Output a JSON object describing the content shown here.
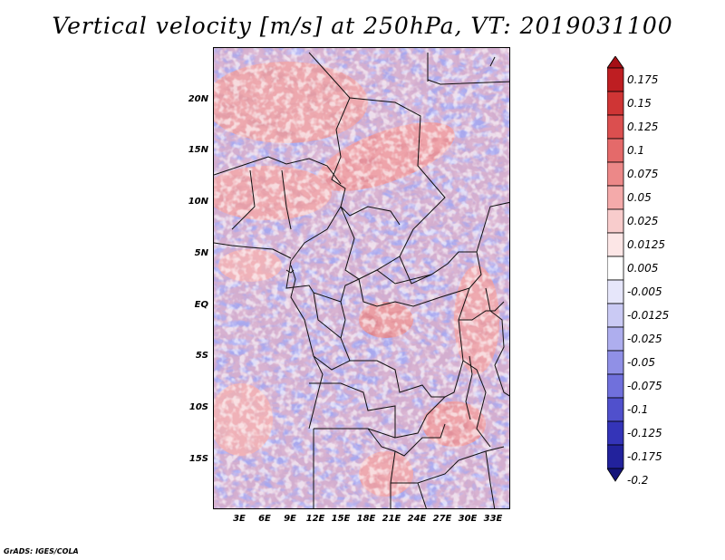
{
  "title": "Vertical velocity [m/s] at 250hPa, VT: 2019031100",
  "credit": "GrADS: IGES/COLA",
  "lat_ticks": [
    "20N",
    "15N",
    "10N",
    "5N",
    "EQ",
    "5S",
    "10S",
    "15S"
  ],
  "lon_ticks": [
    "3E",
    "6E",
    "9E",
    "12E",
    "15E",
    "18E",
    "21E",
    "24E",
    "27E",
    "30E",
    "33E"
  ],
  "colorbar": {
    "labels": [
      "0.175",
      "0.15",
      "0.125",
      "0.1",
      "0.075",
      "0.05",
      "0.025",
      "0.0125",
      "0.005",
      "-0.005",
      "-0.0125",
      "-0.025",
      "-0.05",
      "-0.075",
      "-0.1",
      "-0.125",
      "-0.175",
      "-0.2"
    ],
    "colors": [
      "#a50f15",
      "#be1e22",
      "#cf3535",
      "#db4f4f",
      "#e46a6a",
      "#ec8888",
      "#f4aaaa",
      "#f8cccc",
      "#fce6e6",
      "#ffffff",
      "#e6e6fa",
      "#cacaf4",
      "#aeaeee",
      "#9090e6",
      "#7070dc",
      "#5050cc",
      "#3434b8",
      "#22229c",
      "#14147a"
    ],
    "top_color": "#a50f15",
    "bottom_color": "#14147a"
  },
  "chart_data": {
    "type": "heatmap",
    "title": "Vertical velocity [m/s] at 250hPa, VT: 2019031100",
    "variable": "Vertical velocity",
    "units": "m/s",
    "level": "250hPa",
    "valid_time": "2019031100",
    "x_range_deg": [
      0,
      35
    ],
    "y_range_deg": [
      -20,
      25
    ],
    "xlabel": "",
    "ylabel": "",
    "color_scale_min": -0.2,
    "color_scale_max": 0.175
  }
}
